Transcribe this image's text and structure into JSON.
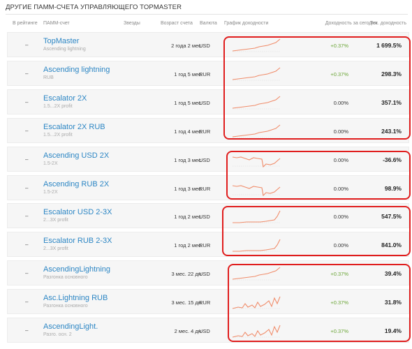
{
  "title": "ДРУГИЕ ПАММ-СЧЕТА УПРАВЛЯЮЩЕГО TOPMASTER",
  "columns": {
    "rating": "В рейтинге",
    "account": "ПАММ-счет",
    "stars": "Звезды",
    "age": "Возраст счета",
    "currency": "Валюта",
    "chart": "График доходности",
    "yield_today": "Доходность за сегодня",
    "current_yield": "Тек. доходность"
  },
  "colors": {
    "accent_link": "#2c86c4",
    "positive": "#6aa536",
    "highlight": "#e01d1d",
    "spark": "#f08c6a"
  },
  "rows": [
    {
      "rating": "–",
      "name": "TopMaster",
      "sub": "Ascending lightning",
      "age": "2 года 2 мес.",
      "currency": "USD",
      "yield_today": "+0.37%",
      "current_yield": "1 699.5%",
      "spark": "rise"
    },
    {
      "rating": "–",
      "name": "Ascending lightning",
      "sub": "RUB",
      "age": "1 год 5 мес.",
      "currency": "RUR",
      "yield_today": "+0.37%",
      "current_yield": "298.3%",
      "spark": "rise"
    },
    {
      "rating": "–",
      "name": "Escalator 2X",
      "sub": "1.5...2X profit",
      "age": "1 год 5 мес.",
      "currency": "USD",
      "yield_today": "0.00%",
      "current_yield": "357.1%",
      "spark": "rise"
    },
    {
      "rating": "–",
      "name": "Escalator 2X RUB",
      "sub": "1.5...2X profit",
      "age": "1 год 4 мес.",
      "currency": "RUR",
      "yield_today": "0.00%",
      "current_yield": "243.1%",
      "spark": "rise"
    },
    {
      "rating": "–",
      "name": "Ascending USD 2X",
      "sub": "1.5-2X",
      "age": "1 год 3 мес.",
      "currency": "USD",
      "yield_today": "0.00%",
      "current_yield": "-36.6%",
      "spark": "drop"
    },
    {
      "rating": "–",
      "name": "Ascending RUB 2X",
      "sub": "1.5-2X",
      "age": "1 год 3 мес.",
      "currency": "RUR",
      "yield_today": "0.00%",
      "current_yield": "98.9%",
      "spark": "drop"
    },
    {
      "rating": "–",
      "name": "Escalator USD 2-3X",
      "sub": "2...3X profit",
      "age": "1 год 2 мес.",
      "currency": "USD",
      "yield_today": "0.00%",
      "current_yield": "547.5%",
      "spark": "jump"
    },
    {
      "rating": "–",
      "name": "Escalator RUB 2-3X",
      "sub": "2...3X profit",
      "age": "1 год 2 мес.",
      "currency": "RUR",
      "yield_today": "0.00%",
      "current_yield": "841.0%",
      "spark": "jump"
    },
    {
      "rating": "–",
      "name": "AscendingLightning",
      "sub": "Разгонка основного",
      "age": "3 мес. 22 дн.",
      "currency": "USD",
      "yield_today": "+0.37%",
      "current_yield": "39.4%",
      "spark": "rise"
    },
    {
      "rating": "–",
      "name": "Asc.Lightning RUB",
      "sub": "Разгонка основного",
      "age": "3 мес. 15 дн.",
      "currency": "RUR",
      "yield_today": "+0.37%",
      "current_yield": "31.8%",
      "spark": "spiky"
    },
    {
      "rating": "–",
      "name": "AscendingLight.",
      "sub": "Разго. осн. 2",
      "age": "2 мес. 4 дн.",
      "currency": "USD",
      "yield_today": "+0.37%",
      "current_yield": "19.4%",
      "spark": "spiky"
    }
  ]
}
